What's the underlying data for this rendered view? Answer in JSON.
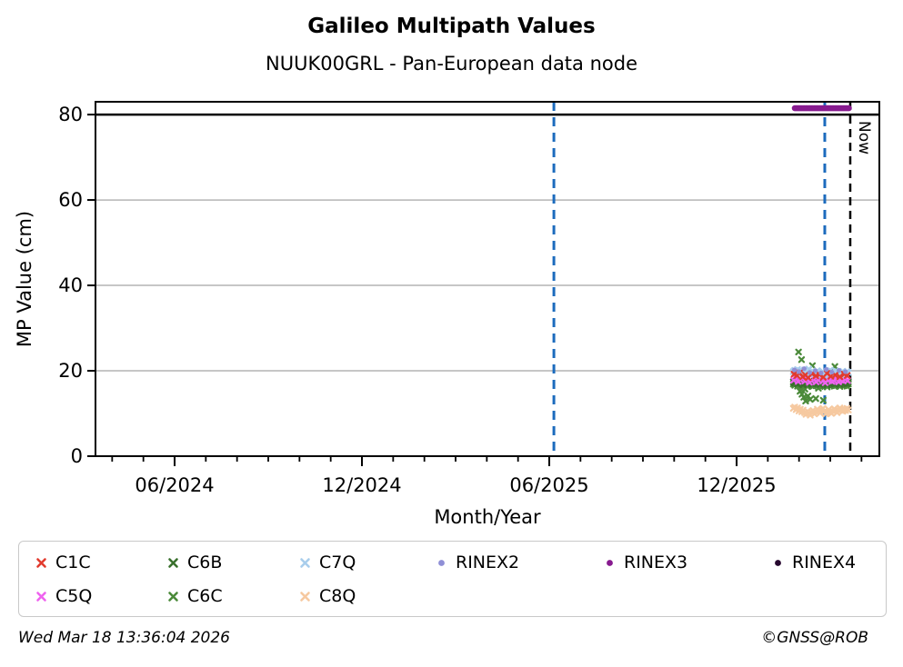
{
  "header": {
    "title": "Galileo Multipath Values",
    "subtitle": "NUUK00GRL - Pan-European data node"
  },
  "footer": {
    "timestamp": "Wed Mar 18 13:36:04 2026",
    "copyright": "©GNSS@ROB"
  },
  "legend": {
    "entries": [
      {
        "label": "C1C",
        "color": "#e23b2e",
        "marker": "x",
        "row": 0,
        "col": 0
      },
      {
        "label": "C5Q",
        "color": "#ef63ef",
        "marker": "x",
        "row": 1,
        "col": 0
      },
      {
        "label": "C6B",
        "color": "#39702d",
        "marker": "x",
        "row": 0,
        "col": 1
      },
      {
        "label": "C6C",
        "color": "#4b8a3a",
        "marker": "x",
        "row": 1,
        "col": 1
      },
      {
        "label": "C7Q",
        "color": "#a8cdec",
        "marker": "x",
        "row": 0,
        "col": 2
      },
      {
        "label": "C8Q",
        "color": "#f6c9a0",
        "marker": "x",
        "row": 1,
        "col": 2
      },
      {
        "label": "RINEX2",
        "color": "#8f8fd6",
        "marker": "circle",
        "row": 0,
        "col": 3
      },
      {
        "label": "RINEX3",
        "color": "#871a8f",
        "marker": "circle",
        "row": 0,
        "col": 4
      },
      {
        "label": "RINEX4",
        "color": "#26062e",
        "marker": "circle",
        "row": 0,
        "col": 5
      }
    ]
  },
  "chart_data": {
    "type": "scatter",
    "title": "Galileo Multipath Values",
    "subtitle": "NUUK00GRL - Pan-European data node",
    "xlabel": "Month/Year",
    "ylabel": "MP Value (cm)",
    "x_range_decimal_year": [
      2024.2055,
      2026.2977
    ],
    "y_range": [
      0,
      83
    ],
    "y_ticks": [
      0,
      20,
      40,
      60,
      80
    ],
    "grid_y": [
      20,
      40,
      60
    ],
    "grid_color": "#b4b4b4",
    "threshold_line_y": 80,
    "threshold_line_color": "#000000",
    "x_major_ticks": [
      {
        "label": "06/2024",
        "year": 2024.4167
      },
      {
        "label": "12/2024",
        "year": 2024.9167
      },
      {
        "label": "06/2025",
        "year": 2025.4167
      },
      {
        "label": "12/2025",
        "year": 2025.9167
      }
    ],
    "minor_ticks": {
      "start_year": 2024,
      "start_month": 4,
      "end_year": 2026,
      "end_month": 4
    },
    "vlines": [
      {
        "year": 2025.429,
        "color": "#1c6bbd",
        "dash": "10 7",
        "width": 3
      },
      {
        "year": 2026.152,
        "color": "#1c6bbd",
        "dash": "10 7",
        "width": 3
      }
    ],
    "now_line": {
      "year": 2026.22,
      "label": "Now",
      "color": "#000000",
      "dash": "9 6",
      "width": 2.5
    },
    "legend_position": "bottom",
    "series": [
      {
        "id": "C8Q",
        "color": "#f6c9a0",
        "marker": "x",
        "x0": 2026.068,
        "dx": 0.00377,
        "y": [
          11.2,
          11.5,
          10.9,
          11.3,
          10.6,
          11.0,
          10.4,
          10.8,
          10.2,
          9.8,
          10.5,
          10.0,
          9.6,
          10.3,
          10.7,
          9.9,
          10.4,
          11.0,
          10.6,
          10.1,
          10.8,
          11.2,
          10.5,
          9.9,
          10.3,
          10.9,
          10.4,
          10.0,
          10.6,
          11.1,
          10.7,
          10.2,
          10.8,
          11.3,
          10.9,
          10.5,
          11.0,
          10.7,
          11.2,
          10.8
        ]
      },
      {
        "id": "C6C",
        "color": "#4b8a3a",
        "marker": "x",
        "x0": 2026.068,
        "dx": 0.00377,
        "y": [
          16.9,
          16.6,
          17.1,
          16.4,
          16.8,
          17.3,
          16.5,
          16.2,
          16.7,
          17.0,
          16.3,
          16.6,
          17.2,
          16.8,
          16.4,
          16.9,
          16.5,
          17.1,
          16.7,
          16.3,
          16.8,
          16.5,
          17.0,
          16.6,
          16.2,
          16.7,
          17.1,
          16.5,
          16.9,
          16.4,
          16.8,
          17.2,
          16.6,
          16.3,
          16.7,
          17.0,
          16.5,
          16.8,
          16.4,
          16.9
        ],
        "points": [
          [
            2026.082,
            24.4
          ],
          [
            2026.09,
            22.6
          ],
          [
            2026.119,
            21.2
          ],
          [
            2026.179,
            21.0
          ],
          [
            2026.074,
            19.9
          ],
          [
            2026.086,
            15.2
          ],
          [
            2026.091,
            14.5
          ],
          [
            2026.096,
            13.8
          ],
          [
            2026.101,
            12.9
          ],
          [
            2026.107,
            14.1
          ],
          [
            2026.113,
            13.3
          ],
          [
            2026.099,
            15.7
          ],
          [
            2026.128,
            13.5
          ],
          [
            2026.148,
            13.1
          ],
          [
            2026.135,
            15.9
          ]
        ]
      },
      {
        "id": "C6B",
        "color": "#39702d",
        "marker": "x",
        "x0": 2026.068,
        "dx": 0.00377,
        "y": [
          17.4,
          17.1,
          17.6,
          16.9,
          17.3,
          17.8,
          17.0,
          16.7,
          17.2,
          17.5,
          16.8,
          17.1,
          17.7,
          17.3,
          16.9,
          17.4,
          17.0,
          17.6,
          17.2,
          16.8,
          17.3,
          17.0,
          17.5,
          17.1,
          16.7,
          17.2,
          17.6,
          17.0,
          17.4,
          16.9,
          17.3,
          17.7,
          17.1,
          16.8,
          17.2,
          17.5,
          17.0,
          17.3,
          16.9,
          17.4
        ]
      },
      {
        "id": "C5Q",
        "color": "#ef63ef",
        "marker": "x",
        "x0": 2026.069,
        "dx": 0.006,
        "y": [
          17.8,
          18.2,
          17.5,
          17.9,
          18.4,
          17.6,
          18.0,
          17.3,
          17.7,
          18.1,
          17.4,
          17.8,
          18.3,
          17.6,
          17.2,
          17.9,
          18.0,
          17.5,
          17.7,
          18.2,
          17.4,
          17.8,
          17.6,
          18.0,
          17.7
        ]
      },
      {
        "id": "C7Q",
        "color": "#a8cdec",
        "marker": "x",
        "x0": 2026.068,
        "dx": 0.00377,
        "y": [
          19.8,
          20.1,
          19.6,
          20.3,
          19.9,
          19.4,
          20.0,
          19.7,
          20.2,
          19.5,
          19.9,
          20.4,
          19.6,
          19.1,
          19.8,
          19.3,
          19.7,
          20.0,
          19.2,
          18.9,
          19.5,
          19.8,
          19.0,
          19.4,
          19.9,
          19.6,
          20.1,
          19.3,
          19.7,
          19.5,
          20.0,
          19.8,
          19.4,
          19.1,
          19.6,
          19.9,
          19.5,
          19.2,
          19.8,
          19.6
        ]
      },
      {
        "id": "C1C",
        "color": "#e23b2e",
        "marker": "x",
        "points": [
          [
            2026.07,
            19.2
          ],
          [
            2026.078,
            18.9
          ],
          [
            2026.085,
            19.5
          ],
          [
            2026.093,
            18.6
          ],
          [
            2026.1,
            19.0
          ],
          [
            2026.108,
            18.4
          ],
          [
            2026.118,
            19.3
          ],
          [
            2026.128,
            18.8
          ],
          [
            2026.138,
            19.1
          ],
          [
            2026.148,
            18.5
          ],
          [
            2026.158,
            19.4
          ],
          [
            2026.168,
            18.7
          ],
          [
            2026.18,
            19.0
          ],
          [
            2026.192,
            18.6
          ],
          [
            2026.204,
            19.2
          ],
          [
            2026.212,
            18.9
          ]
        ]
      },
      {
        "id": "RINEX2",
        "color": "#8f8fd6",
        "marker": "circle",
        "points": [
          [
            2026.071,
            20.2
          ],
          [
            2026.083,
            19.8
          ],
          [
            2026.097,
            20.5
          ],
          [
            2026.112,
            19.6
          ],
          [
            2026.127,
            20.0
          ],
          [
            2026.142,
            19.5
          ],
          [
            2026.156,
            20.3
          ],
          [
            2026.171,
            19.7
          ],
          [
            2026.19,
            20.1
          ],
          [
            2026.207,
            19.8
          ]
        ]
      },
      {
        "id": "RINEX3",
        "color": "#871a8f",
        "marker": "circle",
        "x0": 2026.072,
        "dx": 0.0037,
        "n": 40,
        "y_const": 81.5
      },
      {
        "id": "RINEX4",
        "color": "#26062e",
        "marker": "circle",
        "points": []
      }
    ]
  }
}
